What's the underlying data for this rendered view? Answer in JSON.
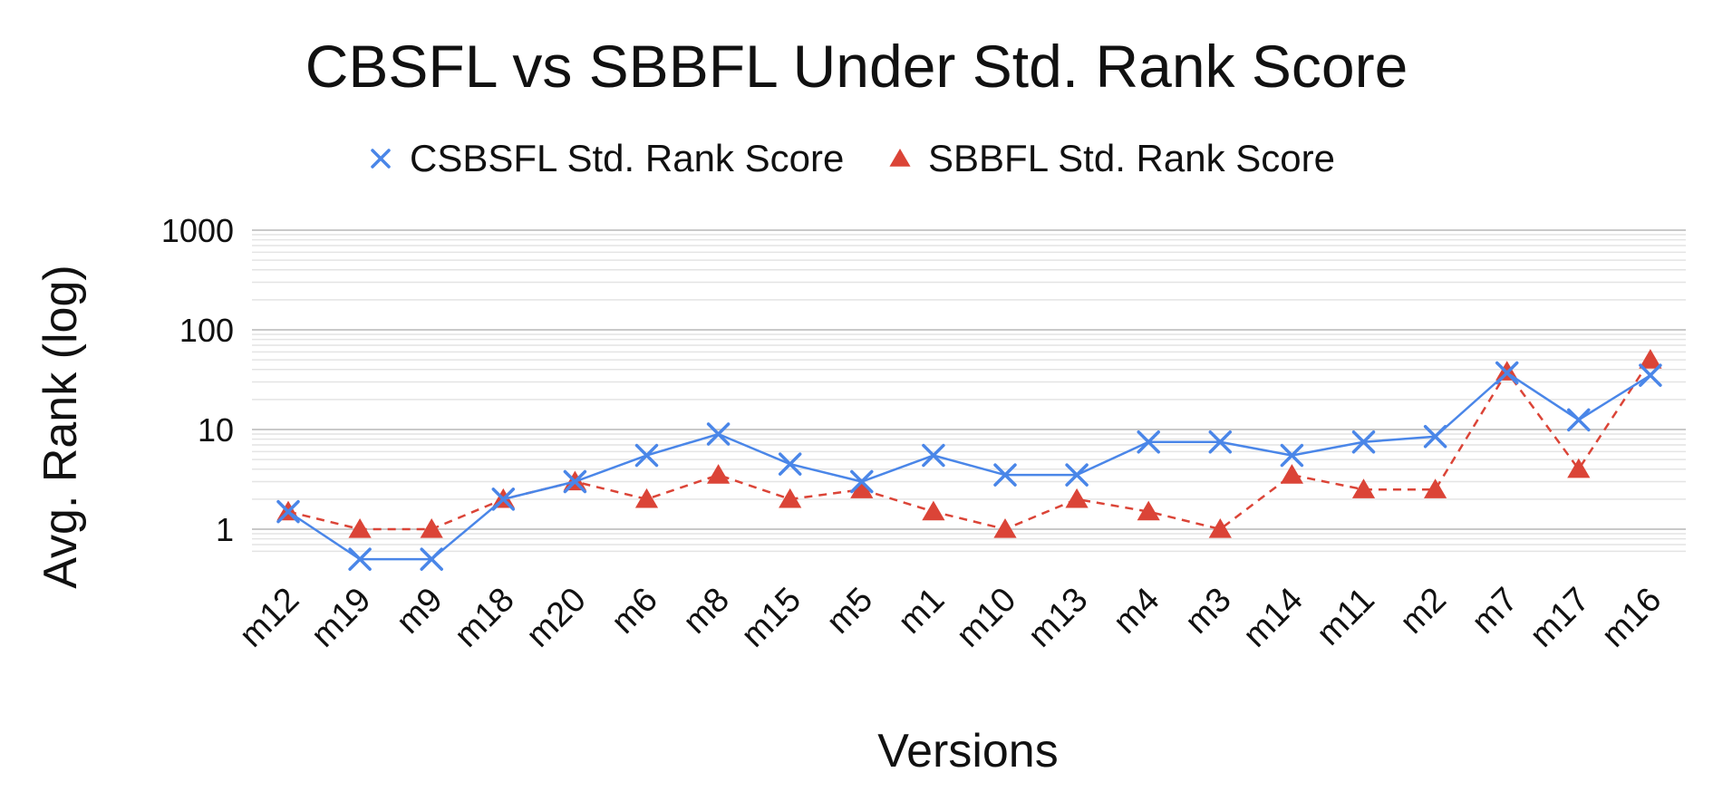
{
  "chart_data": {
    "type": "line",
    "title": "CBSFL vs SBBFL Under Std. Rank Score",
    "xlabel": "Versions",
    "ylabel": "Avg. Rank (log)",
    "yscale": "log",
    "ylim": [
      0.5,
      1000
    ],
    "yticks": [
      "1000",
      "100",
      "10",
      "1"
    ],
    "grid": true,
    "legend_position": "top",
    "categories": [
      "m12",
      "m19",
      "m9",
      "m18",
      "m20",
      "m6",
      "m8",
      "m15",
      "m5",
      "m1",
      "m10",
      "m13",
      "m4",
      "m3",
      "m14",
      "m11",
      "m2",
      "m7",
      "m17",
      "m16"
    ],
    "series": [
      {
        "name": "CSBSFL Std. Rank Score",
        "color": "#4a86e8",
        "marker": "x",
        "line": "solid",
        "values": [
          1.5,
          0.5,
          0.5,
          2,
          3,
          5.5,
          9,
          4.5,
          3,
          5.5,
          3.5,
          3.5,
          7.5,
          7.5,
          5.5,
          7.5,
          8.5,
          37,
          12.5,
          35
        ]
      },
      {
        "name": "SBBFL Std. Rank Score",
        "color": "#db4437",
        "marker": "triangle",
        "line": "dashed",
        "values": [
          1.5,
          1,
          1,
          2,
          3,
          2,
          3.5,
          2,
          2.5,
          1.5,
          1,
          2,
          1.5,
          1,
          3.5,
          2.5,
          2.5,
          38,
          4,
          50
        ]
      }
    ]
  }
}
